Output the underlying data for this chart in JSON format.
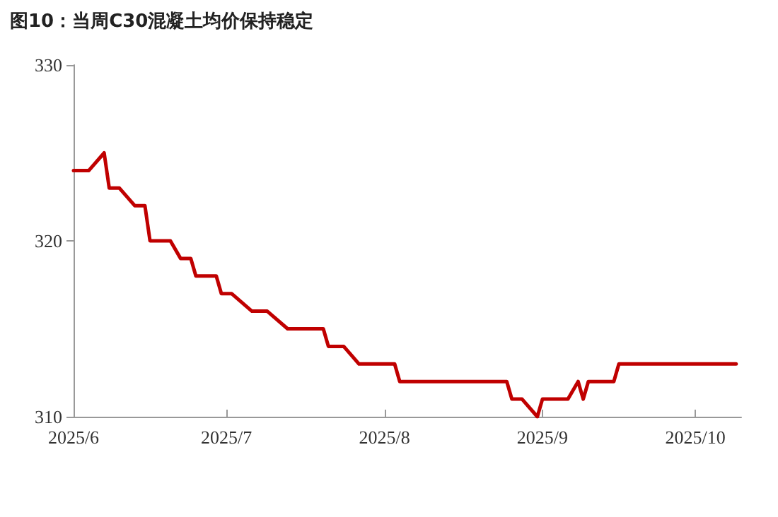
{
  "chart_data": {
    "type": "line",
    "title": "图10：当周C30混凝土均价保持稳定",
    "x": [
      "2025-06-01",
      "2025-06-04",
      "2025-06-07",
      "2025-06-08",
      "2025-06-10",
      "2025-06-13",
      "2025-06-15",
      "2025-06-16",
      "2025-06-20",
      "2025-06-22",
      "2025-06-24",
      "2025-06-25",
      "2025-06-29",
      "2025-06-30",
      "2025-07-02",
      "2025-07-06",
      "2025-07-09",
      "2025-07-13",
      "2025-07-20",
      "2025-07-21",
      "2025-07-24",
      "2025-07-27",
      "2025-08-01",
      "2025-08-03",
      "2025-08-04",
      "2025-08-25",
      "2025-08-26",
      "2025-08-28",
      "2025-08-31",
      "2025-09-01",
      "2025-09-06",
      "2025-09-08",
      "2025-09-09",
      "2025-09-10",
      "2025-09-15",
      "2025-09-16",
      "2025-10-09"
    ],
    "series": [
      {
        "color": "#c00000",
        "values": [
          324,
          324,
          325,
          323,
          323,
          322,
          322,
          320,
          320,
          319,
          319,
          318,
          318,
          317,
          317,
          316,
          316,
          315,
          315,
          314,
          314,
          313,
          313,
          313,
          312,
          312,
          311,
          311,
          310,
          311,
          311,
          312,
          311,
          312,
          312,
          313,
          313
        ]
      }
    ],
    "xlim": [
      "2025-06-01",
      "2025-10-10"
    ],
    "xticks": [
      {
        "value": "2025-06-01",
        "label": "2025/6"
      },
      {
        "value": "2025-07-01",
        "label": "2025/7"
      },
      {
        "value": "2025-08-01",
        "label": "2025/8"
      },
      {
        "value": "2025-09-01",
        "label": "2025/9"
      },
      {
        "value": "2025-10-01",
        "label": "2025/10"
      }
    ],
    "ylim": [
      310,
      330
    ],
    "yticks": [
      310,
      320,
      330
    ],
    "grid": false,
    "marker": "none",
    "line_style": "solid"
  }
}
